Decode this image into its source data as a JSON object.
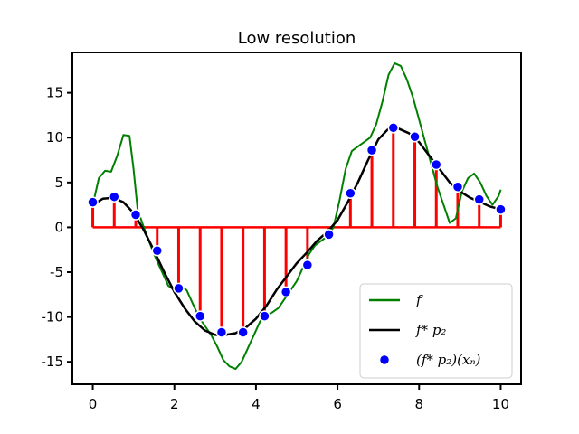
{
  "chart_data": {
    "type": "line",
    "title": "Low resolution",
    "xlabel": "",
    "ylabel": "",
    "xlim": [
      -0.5,
      10.5
    ],
    "ylim": [
      -17.5,
      19.5
    ],
    "xticks": [
      0,
      2,
      4,
      6,
      8,
      10
    ],
    "xtick_labels": [
      "0",
      "2",
      "4",
      "6",
      "8",
      "10"
    ],
    "yticks": [
      15,
      10,
      5,
      0,
      -5,
      -10,
      -15
    ],
    "ytick_labels": [
      "15",
      "10",
      "5",
      "0",
      "-5",
      "-10",
      "-15"
    ],
    "grid": false,
    "legend_position": "lower-right",
    "series": [
      {
        "name": "f",
        "kind": "line",
        "color": "#008000",
        "x": [
          0,
          0.15,
          0.3,
          0.45,
          0.6,
          0.75,
          0.9,
          1.0,
          1.1,
          1.25,
          1.4,
          1.55,
          1.7,
          1.85,
          2.0,
          2.15,
          2.3,
          2.45,
          2.6,
          2.75,
          2.9,
          3.05,
          3.2,
          3.35,
          3.5,
          3.65,
          3.8,
          3.95,
          4.1,
          4.25,
          4.4,
          4.55,
          4.7,
          4.85,
          5.0,
          5.15,
          5.3,
          5.45,
          5.6,
          5.75,
          5.9,
          6.05,
          6.2,
          6.35,
          6.5,
          6.65,
          6.8,
          6.95,
          7.1,
          7.25,
          7.4,
          7.55,
          7.7,
          7.85,
          8.0,
          8.15,
          8.3,
          8.45,
          8.6,
          8.75,
          8.9,
          9.05,
          9.2,
          9.35,
          9.5,
          9.65,
          9.8,
          9.95,
          10.0
        ],
        "y": [
          2.5,
          5.5,
          6.3,
          6.2,
          8.0,
          10.3,
          10.2,
          6.5,
          2.0,
          0.0,
          -1.8,
          -3.5,
          -5.0,
          -6.5,
          -7.0,
          -6.5,
          -7.0,
          -8.5,
          -10.0,
          -11.0,
          -12.0,
          -13.3,
          -14.8,
          -15.5,
          -15.8,
          -15.0,
          -13.5,
          -12.0,
          -10.5,
          -9.8,
          -9.5,
          -9.0,
          -8.0,
          -7.0,
          -6.0,
          -4.5,
          -3.0,
          -2.0,
          -1.5,
          -1.0,
          0.0,
          3.0,
          6.5,
          8.5,
          9.0,
          9.5,
          10.0,
          11.5,
          14.0,
          17.0,
          18.3,
          18.0,
          16.5,
          14.5,
          12.0,
          9.5,
          7.0,
          4.5,
          2.5,
          0.5,
          1.0,
          4.0,
          5.5,
          6.0,
          5.0,
          3.5,
          2.5,
          3.5,
          4.2
        ]
      },
      {
        "name": "f* p₂",
        "kind": "line",
        "color": "#000000",
        "x": [
          0,
          0.25,
          0.5,
          0.75,
          1.0,
          1.25,
          1.5,
          1.75,
          2.0,
          2.25,
          2.5,
          2.75,
          3.0,
          3.25,
          3.5,
          3.75,
          4.0,
          4.25,
          4.5,
          4.75,
          5.0,
          5.25,
          5.5,
          5.75,
          6.0,
          6.25,
          6.5,
          6.75,
          7.0,
          7.25,
          7.5,
          7.75,
          8.0,
          8.25,
          8.5,
          8.75,
          9.0,
          9.25,
          9.5,
          9.75,
          10.0
        ],
        "y": [
          2.5,
          3.2,
          3.3,
          2.8,
          1.6,
          -0.3,
          -2.6,
          -5.0,
          -7.2,
          -9.0,
          -10.5,
          -11.5,
          -12.0,
          -12.0,
          -11.8,
          -11.2,
          -10.2,
          -8.8,
          -7.0,
          -5.5,
          -4.0,
          -2.8,
          -1.5,
          -0.5,
          0.8,
          2.8,
          5.0,
          7.5,
          9.8,
          11.0,
          11.0,
          10.5,
          9.5,
          8.0,
          6.5,
          5.0,
          4.0,
          3.3,
          2.8,
          2.3,
          2.0
        ]
      },
      {
        "name": "(f* p₂)(xₙ)",
        "kind": "scatter_stem",
        "color": "#0000ff",
        "stem_color": "#ff0000",
        "x": [
          0.0,
          0.526,
          1.053,
          1.579,
          2.105,
          2.632,
          3.158,
          3.684,
          4.211,
          4.737,
          5.263,
          5.789,
          6.316,
          6.842,
          7.368,
          7.895,
          8.421,
          8.947,
          9.474,
          10.0
        ],
        "y": [
          2.8,
          3.4,
          1.4,
          -2.6,
          -6.8,
          -9.9,
          -11.7,
          -11.7,
          -9.9,
          -7.2,
          -4.2,
          -0.8,
          3.8,
          8.6,
          11.1,
          10.1,
          7.0,
          4.5,
          3.1,
          2.0
        ]
      }
    ],
    "legend": [
      {
        "label": "f",
        "marker": "line",
        "color": "#008000"
      },
      {
        "label": "f* p₂",
        "marker": "line",
        "color": "#000000"
      },
      {
        "label": "(f* p₂)(xₙ)",
        "marker": "dot",
        "color": "#0000ff"
      }
    ]
  }
}
